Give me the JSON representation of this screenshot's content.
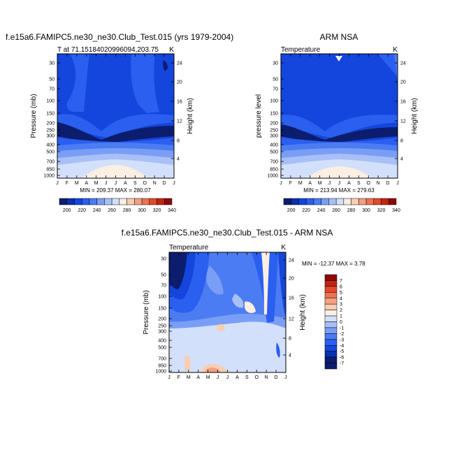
{
  "colors": {
    "abs_palette": [
      "#0c1d6e",
      "#0a2fb0",
      "#1446dd",
      "#2a5ff0",
      "#4c7cf2",
      "#7a9ef5",
      "#a8c0f7",
      "#d3e0fb",
      "#fbeee3",
      "#f9cdb0",
      "#f3a183",
      "#ec7353",
      "#e04a2b",
      "#c22313",
      "#8f0808"
    ],
    "diff_palette": [
      "#0c1d6e",
      "#0a2fb0",
      "#1446dd",
      "#2a5ff0",
      "#4c7cf2",
      "#7a9ef5",
      "#a8c0f7",
      "#d3e0fb",
      "#fbeee3",
      "#f9cdb0",
      "#f3a183",
      "#ec7353",
      "#e04a2b",
      "#c22313",
      "#8f0808"
    ]
  },
  "chart_data": [
    {
      "type": "heatmap",
      "title": "f.e15a6.FAMIPC5.ne30_ne30.Club_Test.015 (yrs 1979-2004)",
      "left_label": "T at 71.15184020996094,203.75",
      "right_label": "K",
      "x_tick_labels": [
        "J",
        "F",
        "M",
        "A",
        "M",
        "J",
        "J",
        "A",
        "S",
        "O",
        "N",
        "D",
        "J"
      ],
      "y_label": "Pressure (mb)",
      "y_ticks": [
        "30",
        "50",
        "70",
        "100",
        "150",
        "200",
        "250",
        "300",
        "400",
        "500",
        "700",
        "850",
        "1000"
      ],
      "y2_label": "Height (km)",
      "y2_ticks": [
        "24",
        "20",
        "16",
        "12",
        "8",
        "4"
      ],
      "stats": "MIN = 209.37 MAX = 280.07",
      "colorbar_labels": [
        "200",
        "220",
        "240",
        "260",
        "280",
        "300",
        "320",
        "340"
      ]
    },
    {
      "type": "heatmap",
      "title": "ARM NSA",
      "left_label": "Temperature",
      "right_label": "K",
      "x_tick_labels": [
        "J",
        "F",
        "M",
        "A",
        "M",
        "J",
        "J",
        "A",
        "S",
        "O",
        "N",
        "D",
        "J"
      ],
      "y_label": "pressure level",
      "y_ticks": [
        "30",
        "50",
        "70",
        "100",
        "150",
        "200",
        "250",
        "300",
        "400",
        "500",
        "700",
        "850",
        "1000"
      ],
      "y2_label": "Height (km)",
      "y2_ticks": [
        "24",
        "20",
        "16",
        "12",
        "8",
        "4"
      ],
      "stats": "MIN = 213.94 MAX = 279.63",
      "colorbar_labels": [
        "200",
        "220",
        "240",
        "260",
        "280",
        "300",
        "320",
        "340"
      ]
    },
    {
      "type": "heatmap",
      "title": "f.e15a6.FAMIPC5.ne30_ne30.Club_Test.015 - ARM NSA",
      "left_label": "Temperature",
      "right_label": "K",
      "x_tick_labels": [
        "J",
        "F",
        "M",
        "A",
        "M",
        "J",
        "J",
        "A",
        "S",
        "O",
        "N",
        "D",
        "J"
      ],
      "y_label": "Pressure (mb)",
      "y_ticks": [
        "30",
        "50",
        "70",
        "100",
        "150",
        "200",
        "250",
        "300",
        "400",
        "500",
        "700",
        "850",
        "1000"
      ],
      "y2_label": "Height (km)",
      "y2_ticks": [
        "24",
        "20",
        "16",
        "12",
        "8",
        "4"
      ],
      "stats": "MIN = -12.37 MAX =   3.78",
      "colorbar_labels": [
        "7",
        "6",
        "5",
        "4",
        "3",
        "2",
        "1",
        "0",
        "-1",
        "-2",
        "-3",
        "-4",
        "-5",
        "-6",
        "-7"
      ]
    }
  ]
}
